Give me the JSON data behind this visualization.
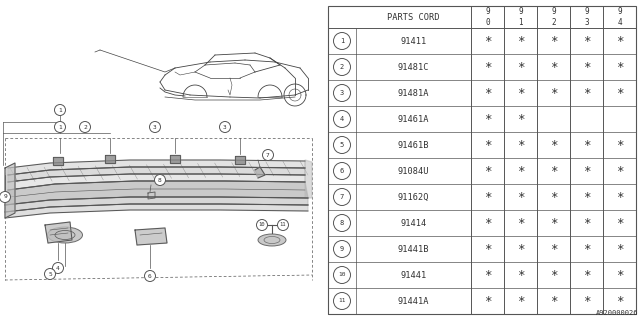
{
  "bg_color": "#ffffff",
  "diagram_code": "A920000026",
  "line_color": "#555555",
  "text_color": "#333333",
  "table": {
    "header_col": "PARTS CORD",
    "year_cols": [
      "9\n0",
      "9\n1",
      "9\n2",
      "9\n3",
      "9\n4"
    ],
    "rows": [
      {
        "num": 1,
        "part": "91411",
        "marks": [
          true,
          true,
          true,
          true,
          true
        ]
      },
      {
        "num": 2,
        "part": "91481C",
        "marks": [
          true,
          true,
          true,
          true,
          true
        ]
      },
      {
        "num": 3,
        "part": "91481A",
        "marks": [
          true,
          true,
          true,
          true,
          true
        ]
      },
      {
        "num": 4,
        "part": "91461A",
        "marks": [
          true,
          true,
          false,
          false,
          false
        ]
      },
      {
        "num": 5,
        "part": "91461B",
        "marks": [
          true,
          true,
          true,
          true,
          true
        ]
      },
      {
        "num": 6,
        "part": "91084U",
        "marks": [
          true,
          true,
          true,
          true,
          true
        ]
      },
      {
        "num": 7,
        "part": "91162Q",
        "marks": [
          true,
          true,
          true,
          true,
          true
        ]
      },
      {
        "num": 8,
        "part": "91414",
        "marks": [
          true,
          true,
          true,
          true,
          true
        ]
      },
      {
        "num": 9,
        "part": "91441B",
        "marks": [
          true,
          true,
          true,
          true,
          true
        ]
      },
      {
        "num": 10,
        "part": "91441",
        "marks": [
          true,
          true,
          true,
          true,
          true
        ]
      },
      {
        "num": 11,
        "part": "91441A",
        "marks": [
          true,
          true,
          true,
          true,
          true
        ]
      }
    ]
  }
}
